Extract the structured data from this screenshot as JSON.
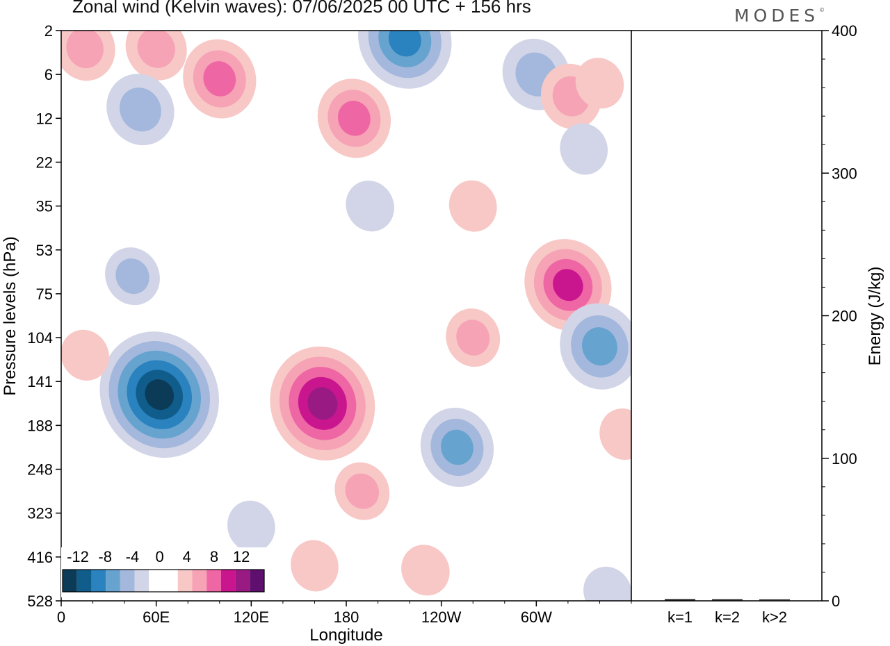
{
  "header": {
    "title": "Zonal wind (Kelvin waves):  07/06/2025  00 UTC  + 156 hrs",
    "brand": "MODES",
    "brand_mark": "©"
  },
  "chart_data": [
    {
      "type": "heatmap",
      "title": "Zonal wind (Kelvin waves):  07/06/2025  00 UTC  + 156 hrs",
      "xlabel": "Longitude",
      "ylabel": "Pressure levels (hPa)",
      "x_ticks": [
        "0",
        "60E",
        "120E",
        "180",
        "120W",
        "60W"
      ],
      "x_tick_values": [
        0,
        60,
        120,
        180,
        240,
        300
      ],
      "xlim": [
        0,
        360
      ],
      "y_ticks": [
        "2",
        "6",
        "12",
        "22",
        "35",
        "53",
        "75",
        "104",
        "141",
        "188",
        "248",
        "323",
        "416",
        "528"
      ],
      "y_scale": "pressure levels, top to bottom",
      "colorbar": {
        "labels": [
          "-12",
          "-8",
          "-4",
          "0",
          "4",
          "8",
          "12"
        ],
        "levels": [
          -16,
          -14,
          -12,
          -10,
          -8,
          -6,
          -4,
          -2,
          2,
          4,
          6,
          8,
          10,
          12,
          14,
          16
        ],
        "colors": [
          "#0b3b57",
          "#105d8c",
          "#2a82bf",
          "#66a3cf",
          "#a3b8dc",
          "#d2d5e7",
          "#ffffff",
          "#ffffff",
          "#f7c8c6",
          "#f6a3b6",
          "#ef66a4",
          "#c9168e",
          "#9a1a84",
          "#5f0f6e"
        ],
        "placement": "bottom-left"
      },
      "regions": [
        {
          "lon": 217,
          "lev": 0.2,
          "value": 10,
          "sign": "neg"
        },
        {
          "lon": 15,
          "lev": 0.4,
          "value": 5,
          "sign": "pos"
        },
        {
          "lon": 60,
          "lev": 0.4,
          "value": 5,
          "sign": "pos"
        },
        {
          "lon": 100,
          "lev": 1.1,
          "value": 7,
          "sign": "pos"
        },
        {
          "lon": 50,
          "lev": 1.8,
          "value": 6,
          "sign": "neg"
        },
        {
          "lon": 185,
          "lev": 2.0,
          "value": 7,
          "sign": "pos"
        },
        {
          "lon": 300,
          "lev": 1.0,
          "value": 6,
          "sign": "neg"
        },
        {
          "lon": 322,
          "lev": 1.5,
          "value": 5,
          "sign": "pos"
        },
        {
          "lon": 340,
          "lev": 1.2,
          "value": 3,
          "sign": "pos"
        },
        {
          "lon": 330,
          "lev": 2.7,
          "value": 3,
          "sign": "neg"
        },
        {
          "lon": 195,
          "lev": 4.0,
          "value": 3,
          "sign": "neg"
        },
        {
          "lon": 260,
          "lev": 4.0,
          "value": 3,
          "sign": "pos"
        },
        {
          "lon": 45,
          "lev": 5.6,
          "value": 4,
          "sign": "neg"
        },
        {
          "lon": 260,
          "lev": 7.0,
          "value": 4,
          "sign": "pos"
        },
        {
          "lon": 320,
          "lev": 5.8,
          "value": 9,
          "sign": "pos"
        },
        {
          "lon": 340,
          "lev": 7.2,
          "value": 8,
          "sign": "neg"
        },
        {
          "lon": 62,
          "lev": 8.3,
          "value": 14,
          "sign": "neg"
        },
        {
          "lon": 165,
          "lev": 8.5,
          "value": 12,
          "sign": "pos"
        },
        {
          "lon": 190,
          "lev": 10.5,
          "value": 4,
          "sign": "pos"
        },
        {
          "lon": 250,
          "lev": 9.5,
          "value": 7,
          "sign": "neg"
        },
        {
          "lon": 15,
          "lev": 7.4,
          "value": 3,
          "sign": "pos"
        },
        {
          "lon": 160,
          "lev": 12.2,
          "value": 3,
          "sign": "pos"
        },
        {
          "lon": 230,
          "lev": 12.3,
          "value": 3,
          "sign": "pos"
        },
        {
          "lon": 355,
          "lev": 9.2,
          "value": 3,
          "sign": "pos"
        },
        {
          "lon": 345,
          "lev": 12.8,
          "value": 3,
          "sign": "neg"
        },
        {
          "lon": 120,
          "lev": 11.3,
          "value": 3,
          "sign": "neg"
        }
      ]
    },
    {
      "type": "bar",
      "ylabel": "Energy (J/kg)",
      "categories": [
        "k=1",
        "k=2",
        "k>2"
      ],
      "values": [
        0.5,
        0.4,
        0.3
      ],
      "ylim": [
        0,
        400
      ],
      "y_ticks": [
        0,
        100,
        200,
        300,
        400
      ],
      "y_axis_side": "right"
    }
  ]
}
